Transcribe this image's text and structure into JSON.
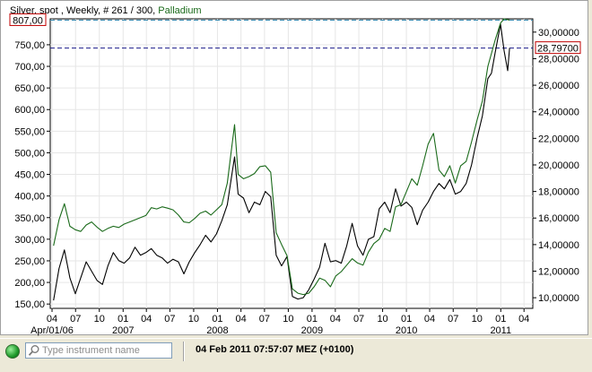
{
  "chart_data": {
    "type": "line",
    "title": "Silver, spot , Weekly, # 261 / 300, Palladium",
    "series": [
      {
        "name": "Silver, spot",
        "axis": "right",
        "color": "#000000",
        "points": [
          [
            "2006-04-07",
            9.8
          ],
          [
            "2006-04-28",
            12.2
          ],
          [
            "2006-05-19",
            13.6
          ],
          [
            "2006-06-09",
            11.5
          ],
          [
            "2006-06-30",
            10.3
          ],
          [
            "2006-07-21",
            11.5
          ],
          [
            "2006-08-11",
            12.7
          ],
          [
            "2006-09-01",
            12.0
          ],
          [
            "2006-09-22",
            11.3
          ],
          [
            "2006-10-13",
            11.0
          ],
          [
            "2006-11-03",
            12.4
          ],
          [
            "2006-11-24",
            13.4
          ],
          [
            "2006-12-15",
            12.8
          ],
          [
            "2007-01-05",
            12.6
          ],
          [
            "2007-01-26",
            13.0
          ],
          [
            "2007-02-16",
            13.8
          ],
          [
            "2007-03-09",
            13.2
          ],
          [
            "2007-03-30",
            13.4
          ],
          [
            "2007-04-20",
            13.7
          ],
          [
            "2007-05-11",
            13.2
          ],
          [
            "2007-06-01",
            13.0
          ],
          [
            "2007-06-22",
            12.6
          ],
          [
            "2007-07-13",
            12.9
          ],
          [
            "2007-08-03",
            12.7
          ],
          [
            "2007-08-24",
            11.8
          ],
          [
            "2007-09-14",
            12.7
          ],
          [
            "2007-10-05",
            13.4
          ],
          [
            "2007-10-26",
            14.0
          ],
          [
            "2007-11-16",
            14.7
          ],
          [
            "2007-12-07",
            14.2
          ],
          [
            "2007-12-28",
            14.8
          ],
          [
            "2008-01-18",
            15.8
          ],
          [
            "2008-02-08",
            17.0
          ],
          [
            "2008-03-07",
            20.6
          ],
          [
            "2008-03-21",
            17.8
          ],
          [
            "2008-04-11",
            17.5
          ],
          [
            "2008-05-02",
            16.4
          ],
          [
            "2008-05-23",
            17.2
          ],
          [
            "2008-06-13",
            17.0
          ],
          [
            "2008-07-04",
            18.0
          ],
          [
            "2008-07-25",
            17.6
          ],
          [
            "2008-08-15",
            13.2
          ],
          [
            "2008-09-05",
            12.4
          ],
          [
            "2008-09-26",
            13.1
          ],
          [
            "2008-10-17",
            10.1
          ],
          [
            "2008-11-07",
            9.9
          ],
          [
            "2008-11-28",
            10.0
          ],
          [
            "2008-12-19",
            10.6
          ],
          [
            "2009-01-09",
            11.4
          ],
          [
            "2009-01-30",
            12.3
          ],
          [
            "2009-02-20",
            14.1
          ],
          [
            "2009-03-13",
            12.7
          ],
          [
            "2009-04-03",
            12.8
          ],
          [
            "2009-04-24",
            12.6
          ],
          [
            "2009-05-15",
            13.9
          ],
          [
            "2009-06-05",
            15.6
          ],
          [
            "2009-06-26",
            13.9
          ],
          [
            "2009-07-17",
            13.2
          ],
          [
            "2009-08-07",
            14.4
          ],
          [
            "2009-08-28",
            14.6
          ],
          [
            "2009-09-18",
            16.7
          ],
          [
            "2009-10-09",
            17.2
          ],
          [
            "2009-10-30",
            16.4
          ],
          [
            "2009-11-20",
            18.2
          ],
          [
            "2009-12-11",
            16.9
          ],
          [
            "2010-01-01",
            17.2
          ],
          [
            "2010-01-22",
            16.8
          ],
          [
            "2010-02-12",
            15.5
          ],
          [
            "2010-03-05",
            16.6
          ],
          [
            "2010-03-26",
            17.2
          ],
          [
            "2010-04-16",
            18.0
          ],
          [
            "2010-05-07",
            18.6
          ],
          [
            "2010-05-28",
            18.2
          ],
          [
            "2010-06-18",
            18.9
          ],
          [
            "2010-07-09",
            17.8
          ],
          [
            "2010-07-30",
            18.0
          ],
          [
            "2010-08-20",
            18.6
          ],
          [
            "2010-09-10",
            20.0
          ],
          [
            "2010-10-01",
            22.0
          ],
          [
            "2010-10-22",
            23.7
          ],
          [
            "2010-11-12",
            26.5
          ],
          [
            "2010-11-26",
            26.9
          ],
          [
            "2010-12-10",
            28.4
          ],
          [
            "2010-12-31",
            30.6
          ],
          [
            "2011-01-14",
            28.6
          ],
          [
            "2011-01-28",
            27.1
          ],
          [
            "2011-02-04",
            28.8
          ]
        ]
      },
      {
        "name": "Palladium",
        "axis": "left",
        "color": "#1a6a1a",
        "points": [
          [
            "2006-04-07",
            285
          ],
          [
            "2006-04-28",
            345
          ],
          [
            "2006-05-19",
            382
          ],
          [
            "2006-06-09",
            330
          ],
          [
            "2006-06-30",
            322
          ],
          [
            "2006-07-21",
            318
          ],
          [
            "2006-08-11",
            333
          ],
          [
            "2006-09-01",
            340
          ],
          [
            "2006-09-22",
            328
          ],
          [
            "2006-10-13",
            318
          ],
          [
            "2006-11-03",
            325
          ],
          [
            "2006-11-24",
            330
          ],
          [
            "2006-12-15",
            327
          ],
          [
            "2007-01-05",
            335
          ],
          [
            "2007-01-26",
            340
          ],
          [
            "2007-02-16",
            345
          ],
          [
            "2007-03-09",
            350
          ],
          [
            "2007-03-30",
            355
          ],
          [
            "2007-04-20",
            373
          ],
          [
            "2007-05-11",
            370
          ],
          [
            "2007-06-01",
            375
          ],
          [
            "2007-06-22",
            372
          ],
          [
            "2007-07-13",
            368
          ],
          [
            "2007-08-03",
            356
          ],
          [
            "2007-08-24",
            340
          ],
          [
            "2007-09-14",
            338
          ],
          [
            "2007-10-05",
            348
          ],
          [
            "2007-10-26",
            360
          ],
          [
            "2007-11-16",
            365
          ],
          [
            "2007-12-07",
            356
          ],
          [
            "2007-12-28",
            368
          ],
          [
            "2008-01-18",
            380
          ],
          [
            "2008-02-08",
            430
          ],
          [
            "2008-03-07",
            565
          ],
          [
            "2008-03-21",
            450
          ],
          [
            "2008-04-11",
            440
          ],
          [
            "2008-05-02",
            445
          ],
          [
            "2008-05-23",
            452
          ],
          [
            "2008-06-13",
            468
          ],
          [
            "2008-07-04",
            470
          ],
          [
            "2008-07-25",
            455
          ],
          [
            "2008-08-15",
            315
          ],
          [
            "2008-09-05",
            288
          ],
          [
            "2008-09-26",
            262
          ],
          [
            "2008-10-17",
            185
          ],
          [
            "2008-11-07",
            175
          ],
          [
            "2008-11-28",
            172
          ],
          [
            "2008-12-19",
            175
          ],
          [
            "2009-01-09",
            190
          ],
          [
            "2009-01-30",
            210
          ],
          [
            "2009-02-20",
            205
          ],
          [
            "2009-03-13",
            190
          ],
          [
            "2009-04-03",
            215
          ],
          [
            "2009-04-24",
            225
          ],
          [
            "2009-05-15",
            240
          ],
          [
            "2009-06-05",
            255
          ],
          [
            "2009-06-26",
            245
          ],
          [
            "2009-07-17",
            240
          ],
          [
            "2009-08-07",
            270
          ],
          [
            "2009-08-28",
            290
          ],
          [
            "2009-09-18",
            300
          ],
          [
            "2009-10-09",
            325
          ],
          [
            "2009-10-30",
            318
          ],
          [
            "2009-11-20",
            375
          ],
          [
            "2009-12-11",
            380
          ],
          [
            "2010-01-01",
            410
          ],
          [
            "2010-01-22",
            440
          ],
          [
            "2010-02-12",
            425
          ],
          [
            "2010-03-05",
            470
          ],
          [
            "2010-03-26",
            520
          ],
          [
            "2010-04-16",
            545
          ],
          [
            "2010-05-07",
            460
          ],
          [
            "2010-05-28",
            445
          ],
          [
            "2010-06-18",
            470
          ],
          [
            "2010-07-09",
            430
          ],
          [
            "2010-07-30",
            470
          ],
          [
            "2010-08-20",
            480
          ],
          [
            "2010-09-10",
            525
          ],
          [
            "2010-10-01",
            575
          ],
          [
            "2010-10-22",
            620
          ],
          [
            "2010-11-12",
            700
          ],
          [
            "2010-11-26",
            730
          ],
          [
            "2010-12-10",
            760
          ],
          [
            "2010-12-31",
            800
          ],
          [
            "2011-01-14",
            810
          ],
          [
            "2011-01-28",
            808
          ],
          [
            "2011-02-04",
            807
          ]
        ]
      }
    ],
    "left_axis": {
      "ylim": [
        140,
        810
      ],
      "ticks": [
        150,
        200,
        250,
        300,
        350,
        400,
        450,
        500,
        550,
        600,
        650,
        700,
        750
      ],
      "tick_labels": [
        "150,00",
        "200,00",
        "250,00",
        "300,00",
        "350,00",
        "400,00",
        "450,00",
        "500,00",
        "550,00",
        "600,00",
        "650,00",
        "700,00",
        "750,00"
      ],
      "last_value_label": "807,00",
      "last_value": 807
    },
    "right_axis": {
      "ylim": [
        9.2,
        31.0
      ],
      "ticks": [
        10,
        12,
        14,
        16,
        18,
        20,
        22,
        24,
        26,
        28,
        30
      ],
      "tick_labels": [
        "10,00000",
        "12,00000",
        "14,00000",
        "16,00000",
        "18,00000",
        "20,00000",
        "22,00000",
        "24,00000",
        "26,00000",
        "28,00000",
        "30,00000"
      ],
      "last_value_label": "28,79700",
      "last_value": 28.797
    },
    "x_axis": {
      "range": [
        "2006-03-25",
        "2011-05-05"
      ],
      "month_ticks": [
        [
          "2006-04-01",
          "04"
        ],
        [
          "2006-07-01",
          "07"
        ],
        [
          "2006-10-01",
          "10"
        ],
        [
          "2007-01-01",
          "01"
        ],
        [
          "2007-04-01",
          "04"
        ],
        [
          "2007-07-01",
          "07"
        ],
        [
          "2007-10-01",
          "10"
        ],
        [
          "2008-01-01",
          "01"
        ],
        [
          "2008-04-01",
          "04"
        ],
        [
          "2008-07-01",
          "07"
        ],
        [
          "2008-10-01",
          "10"
        ],
        [
          "2009-01-01",
          "01"
        ],
        [
          "2009-04-01",
          "04"
        ],
        [
          "2009-07-01",
          "07"
        ],
        [
          "2009-10-01",
          "10"
        ],
        [
          "2010-01-01",
          "01"
        ],
        [
          "2010-04-01",
          "04"
        ],
        [
          "2010-07-01",
          "07"
        ],
        [
          "2010-10-01",
          "10"
        ],
        [
          "2011-01-01",
          "01"
        ],
        [
          "2011-04-01",
          "04"
        ]
      ],
      "year_labels": [
        [
          "2006-04-01",
          "Apr/01/06"
        ],
        [
          "2007-01-01",
          "2007"
        ],
        [
          "2008-01-01",
          "2008"
        ],
        [
          "2009-01-01",
          "2009"
        ],
        [
          "2010-01-01",
          "2010"
        ],
        [
          "2011-01-01",
          "2011"
        ]
      ]
    },
    "grid": true
  },
  "caption": {
    "prefix": "Silver, spot , Weekly, # 261 / 300, ",
    "palladium": "Palladium"
  },
  "status": {
    "search_placeholder": "Type instrument name",
    "datetime": "04 Feb 2011 07:57:07  MEZ (+0100)"
  },
  "colors": {
    "silver": "#000000",
    "palladium": "#1a6a1a",
    "left_last_line": "#3a8ab0",
    "right_last_line": "#1a1a8a",
    "value_label_border": "#c00000",
    "grid": "#e6e6e6"
  }
}
